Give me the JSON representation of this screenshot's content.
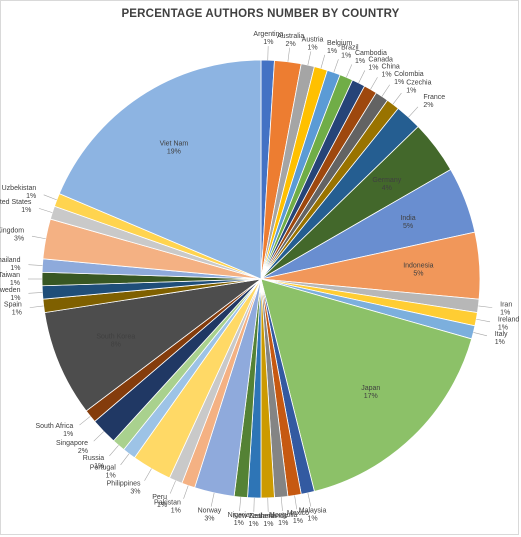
{
  "chart_data": {
    "type": "pie",
    "title": "PERCENTAGE AUTHORS NUMBER BY COUNTRY",
    "slices": [
      {
        "label": "Argentina",
        "value": 1,
        "color": "#4472c4"
      },
      {
        "label": "Australia",
        "value": 2,
        "color": "#ed7d31"
      },
      {
        "label": "Austria",
        "value": 1,
        "color": "#a5a5a5"
      },
      {
        "label": "Belgium",
        "value": 1,
        "color": "#ffc000"
      },
      {
        "label": "Brazil",
        "value": 1,
        "color": "#5b9bd5"
      },
      {
        "label": "Cambodia",
        "value": 1,
        "color": "#70ad47"
      },
      {
        "label": "Canada",
        "value": 1,
        "color": "#264478"
      },
      {
        "label": "China",
        "value": 1,
        "color": "#9e480e"
      },
      {
        "label": "Colombia",
        "value": 1,
        "color": "#636363"
      },
      {
        "label": "Czechia",
        "value": 1,
        "color": "#997300"
      },
      {
        "label": "France",
        "value": 2,
        "color": "#255e91"
      },
      {
        "label": "Germany",
        "value": 4,
        "color": "#43682b"
      },
      {
        "label": "India",
        "value": 5,
        "color": "#698ed0"
      },
      {
        "label": "Indonesia",
        "value": 5,
        "color": "#f1975a"
      },
      {
        "label": "Iran",
        "value": 1,
        "color": "#b7b7b7"
      },
      {
        "label": "Ireland",
        "value": 1,
        "color": "#ffcd33"
      },
      {
        "label": "Italy",
        "value": 1,
        "color": "#7cafdd"
      },
      {
        "label": "Japan",
        "value": 17,
        "color": "#8cc168"
      },
      {
        "label": "Malaysia",
        "value": 1,
        "color": "#335aa1"
      },
      {
        "label": "Mexico",
        "value": 1,
        "color": "#c65911"
      },
      {
        "label": "Mongolia",
        "value": 1,
        "color": "#848484"
      },
      {
        "label": "Netherlands",
        "value": 1,
        "color": "#cc9a00"
      },
      {
        "label": "New Zealand",
        "value": 1,
        "color": "#2e75b6"
      },
      {
        "label": "Nigeria",
        "value": 1,
        "color": "#548235"
      },
      {
        "label": "Norway",
        "value": 3,
        "color": "#8faadc"
      },
      {
        "label": "Pakistan",
        "value": 1,
        "color": "#f4b183"
      },
      {
        "label": "Peru",
        "value": 1,
        "color": "#c9c9c9"
      },
      {
        "label": "Philippines",
        "value": 3,
        "color": "#ffd966"
      },
      {
        "label": "Portugal",
        "value": 1,
        "color": "#9dc3e6"
      },
      {
        "label": "Russia",
        "value": 1,
        "color": "#a9d18e"
      },
      {
        "label": "Singapore",
        "value": 2,
        "color": "#203864"
      },
      {
        "label": "South Africa",
        "value": 1,
        "color": "#843c0c"
      },
      {
        "label": "South Korea",
        "value": 8,
        "color": "#4d4d4d"
      },
      {
        "label": "Spain",
        "value": 1,
        "color": "#7f6000"
      },
      {
        "label": "Sweden",
        "value": 1,
        "color": "#1f4e79"
      },
      {
        "label": "Taiwan",
        "value": 1,
        "color": "#385723"
      },
      {
        "label": "Thailand",
        "value": 1,
        "color": "#8eaadb"
      },
      {
        "label": "United Kingdom",
        "value": 3,
        "color": "#f4b183"
      },
      {
        "label": "United States",
        "value": 1,
        "color": "#c9c9c9"
      },
      {
        "label": "Uzbekistan",
        "value": 1,
        "color": "#ffd44f"
      },
      {
        "label": "Viet Nam",
        "value": 19,
        "color": "#8db4e2"
      }
    ]
  }
}
